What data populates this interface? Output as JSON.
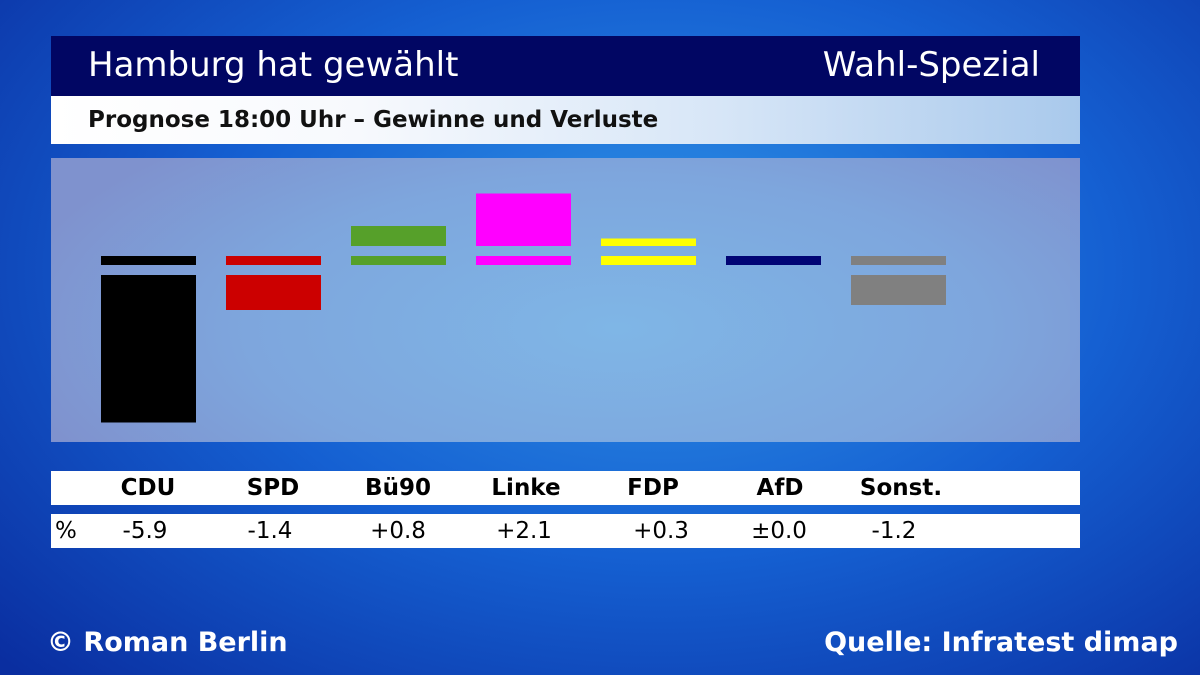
{
  "header": {
    "title": "Hamburg hat gewählt",
    "badge": "Wahl-Spezial",
    "subtitle": "Prognose 18:00 Uhr – Gewinne und Verluste"
  },
  "table": {
    "percent_label": "%",
    "parties": [
      "CDU",
      "SPD",
      "Bü90",
      "Linke",
      "FDP",
      "AfD",
      "Sonst."
    ],
    "value_labels": [
      "-5.9",
      "-1.4",
      "+0.8",
      "+2.1",
      "+0.3",
      "±0.0",
      "-1.2"
    ]
  },
  "footer": {
    "copyright": "© Roman Berlin",
    "source": "Quelle: Infratest dimap"
  },
  "chart_data": {
    "type": "bar",
    "categories": [
      "CDU",
      "SPD",
      "Bü90",
      "Linke",
      "FDP",
      "AfD",
      "Sonst."
    ],
    "values": [
      -5.9,
      -1.4,
      0.8,
      2.1,
      0.3,
      0.0,
      -1.2
    ],
    "colors": [
      "#000000",
      "#cc0000",
      "#56a02a",
      "#ff00ff",
      "#ffff00",
      "#020575",
      "#808080"
    ],
    "baseline": 0,
    "ylim": [
      -6.5,
      3
    ],
    "grid": false,
    "legend": "none"
  }
}
